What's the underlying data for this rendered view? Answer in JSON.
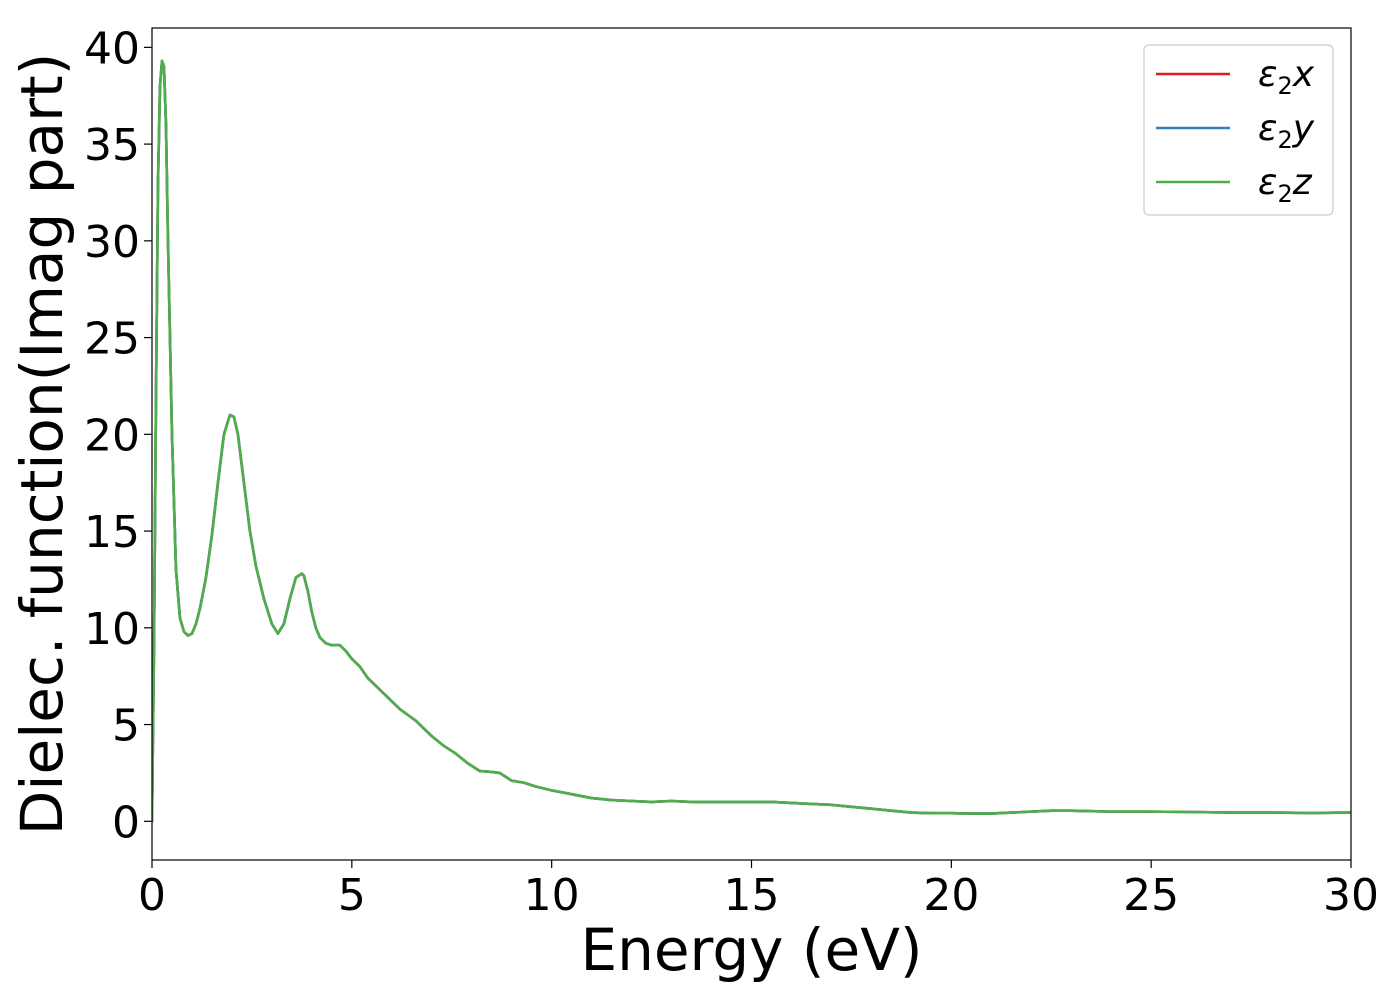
{
  "chart_data": {
    "type": "line",
    "xlabel": "Energy (eV)",
    "ylabel": "Dielec. function(Imag part)",
    "xlim": [
      0,
      30
    ],
    "ylim": [
      -2,
      41
    ],
    "xticks": [
      0,
      5,
      10,
      15,
      20,
      25,
      30
    ],
    "yticks": [
      0,
      5,
      10,
      15,
      20,
      25,
      30,
      35,
      40
    ],
    "grid": false,
    "legend_position": "top-right",
    "series": [
      {
        "name": "ε2x",
        "legend_base": "ε",
        "legend_sub": "2",
        "legend_var": "x",
        "color": "#e41a1c",
        "x": [
          0,
          0.05,
          0.1,
          0.15,
          0.2,
          0.25,
          0.3,
          0.35,
          0.4,
          0.5,
          0.6,
          0.7,
          0.8,
          0.9,
          1.0,
          1.1,
          1.2,
          1.35,
          1.5,
          1.65,
          1.8,
          1.95,
          2.05,
          2.15,
          2.3,
          2.45,
          2.6,
          2.8,
          3.0,
          3.15,
          3.3,
          3.45,
          3.6,
          3.75,
          3.8,
          3.9,
          4.0,
          4.1,
          4.2,
          4.35,
          4.5,
          4.7,
          4.85,
          5.0,
          5.2,
          5.4,
          5.6,
          5.8,
          6.0,
          6.2,
          6.4,
          6.6,
          6.8,
          7.0,
          7.3,
          7.6,
          7.9,
          8.2,
          8.5,
          8.7,
          9.0,
          9.3,
          9.6,
          10.0,
          10.5,
          11.0,
          11.5,
          12.0,
          12.5,
          13.0,
          13.5,
          14.0,
          14.5,
          15.0,
          15.5,
          16.0,
          16.5,
          17.0,
          17.5,
          18.0,
          18.5,
          19.0,
          19.5,
          20.0,
          20.5,
          21.0,
          21.5,
          22.0,
          22.5,
          23.0,
          24.0,
          25.0,
          26.0,
          27.0,
          28.0,
          29.0,
          30.0
        ],
        "y": [
          0,
          9,
          22,
          33,
          38,
          39.3,
          39.0,
          36,
          30,
          20,
          13,
          10.5,
          9.8,
          9.6,
          9.7,
          10.2,
          11.0,
          12.6,
          14.8,
          17.5,
          20.0,
          21.0,
          20.9,
          20.0,
          17.5,
          15.0,
          13.2,
          11.5,
          10.2,
          9.7,
          10.2,
          11.5,
          12.6,
          12.8,
          12.7,
          11.9,
          10.8,
          10.0,
          9.5,
          9.2,
          9.1,
          9.1,
          8.8,
          8.4,
          8.0,
          7.4,
          7.0,
          6.6,
          6.2,
          5.8,
          5.5,
          5.2,
          4.8,
          4.4,
          3.9,
          3.5,
          3.0,
          2.6,
          2.55,
          2.5,
          2.1,
          2.0,
          1.8,
          1.6,
          1.4,
          1.2,
          1.1,
          1.05,
          1.0,
          1.05,
          1.0,
          1.0,
          1.0,
          1.0,
          1.0,
          0.95,
          0.9,
          0.85,
          0.75,
          0.65,
          0.55,
          0.45,
          0.42,
          0.42,
          0.4,
          0.4,
          0.45,
          0.5,
          0.55,
          0.55,
          0.5,
          0.5,
          0.48,
          0.45,
          0.45,
          0.43,
          0.45
        ]
      },
      {
        "name": "ε2y",
        "legend_base": "ε",
        "legend_sub": "2",
        "legend_var": "y",
        "color": "#377eb8",
        "x": [
          0,
          0.05,
          0.1,
          0.15,
          0.2,
          0.25,
          0.3,
          0.35,
          0.4,
          0.5,
          0.6,
          0.7,
          0.8,
          0.9,
          1.0,
          1.1,
          1.2,
          1.35,
          1.5,
          1.65,
          1.8,
          1.95,
          2.05,
          2.15,
          2.3,
          2.45,
          2.6,
          2.8,
          3.0,
          3.15,
          3.3,
          3.45,
          3.6,
          3.75,
          3.8,
          3.9,
          4.0,
          4.1,
          4.2,
          4.35,
          4.5,
          4.7,
          4.85,
          5.0,
          5.2,
          5.4,
          5.6,
          5.8,
          6.0,
          6.2,
          6.4,
          6.6,
          6.8,
          7.0,
          7.3,
          7.6,
          7.9,
          8.2,
          8.5,
          8.7,
          9.0,
          9.3,
          9.6,
          10.0,
          10.5,
          11.0,
          11.5,
          12.0,
          12.5,
          13.0,
          13.5,
          14.0,
          14.5,
          15.0,
          15.5,
          16.0,
          16.5,
          17.0,
          17.5,
          18.0,
          18.5,
          19.0,
          19.5,
          20.0,
          20.5,
          21.0,
          21.5,
          22.0,
          22.5,
          23.0,
          24.0,
          25.0,
          26.0,
          27.0,
          28.0,
          29.0,
          30.0
        ],
        "y": [
          0,
          9,
          22,
          33,
          38,
          39.3,
          39.0,
          36,
          30,
          20,
          13,
          10.5,
          9.8,
          9.6,
          9.7,
          10.2,
          11.0,
          12.6,
          14.8,
          17.5,
          20.0,
          21.0,
          20.9,
          20.0,
          17.5,
          15.0,
          13.2,
          11.5,
          10.2,
          9.7,
          10.2,
          11.5,
          12.6,
          12.8,
          12.7,
          11.9,
          10.8,
          10.0,
          9.5,
          9.2,
          9.1,
          9.1,
          8.8,
          8.4,
          8.0,
          7.4,
          7.0,
          6.6,
          6.2,
          5.8,
          5.5,
          5.2,
          4.8,
          4.4,
          3.9,
          3.5,
          3.0,
          2.6,
          2.55,
          2.5,
          2.1,
          2.0,
          1.8,
          1.6,
          1.4,
          1.2,
          1.1,
          1.05,
          1.0,
          1.05,
          1.0,
          1.0,
          1.0,
          1.0,
          1.0,
          0.95,
          0.9,
          0.85,
          0.75,
          0.65,
          0.55,
          0.45,
          0.42,
          0.42,
          0.4,
          0.4,
          0.45,
          0.5,
          0.55,
          0.55,
          0.5,
          0.5,
          0.48,
          0.45,
          0.45,
          0.43,
          0.45
        ]
      },
      {
        "name": "ε2z",
        "legend_base": "ε",
        "legend_sub": "2",
        "legend_var": "z",
        "color": "#4daf4a",
        "x": [
          0,
          0.05,
          0.1,
          0.15,
          0.2,
          0.25,
          0.3,
          0.35,
          0.4,
          0.5,
          0.6,
          0.7,
          0.8,
          0.9,
          1.0,
          1.1,
          1.2,
          1.35,
          1.5,
          1.65,
          1.8,
          1.95,
          2.05,
          2.15,
          2.3,
          2.45,
          2.6,
          2.8,
          3.0,
          3.15,
          3.3,
          3.45,
          3.6,
          3.75,
          3.8,
          3.9,
          4.0,
          4.1,
          4.2,
          4.35,
          4.5,
          4.7,
          4.85,
          5.0,
          5.2,
          5.4,
          5.6,
          5.8,
          6.0,
          6.2,
          6.4,
          6.6,
          6.8,
          7.0,
          7.3,
          7.6,
          7.9,
          8.2,
          8.5,
          8.7,
          9.0,
          9.3,
          9.6,
          10.0,
          10.5,
          11.0,
          11.5,
          12.0,
          12.5,
          13.0,
          13.5,
          14.0,
          14.5,
          15.0,
          15.5,
          16.0,
          16.5,
          17.0,
          17.5,
          18.0,
          18.5,
          19.0,
          19.5,
          20.0,
          20.5,
          21.0,
          21.5,
          22.0,
          22.5,
          23.0,
          24.0,
          25.0,
          26.0,
          27.0,
          28.0,
          29.0,
          30.0
        ],
        "y": [
          0,
          9,
          22,
          33,
          38,
          39.3,
          39.0,
          36,
          30,
          20,
          13,
          10.5,
          9.8,
          9.6,
          9.7,
          10.2,
          11.0,
          12.6,
          14.8,
          17.5,
          20.0,
          21.0,
          20.9,
          20.0,
          17.5,
          15.0,
          13.2,
          11.5,
          10.2,
          9.7,
          10.2,
          11.5,
          12.6,
          12.8,
          12.7,
          11.9,
          10.8,
          10.0,
          9.5,
          9.2,
          9.1,
          9.1,
          8.8,
          8.4,
          8.0,
          7.4,
          7.0,
          6.6,
          6.2,
          5.8,
          5.5,
          5.2,
          4.8,
          4.4,
          3.9,
          3.5,
          3.0,
          2.6,
          2.55,
          2.5,
          2.1,
          2.0,
          1.8,
          1.6,
          1.4,
          1.2,
          1.1,
          1.05,
          1.0,
          1.05,
          1.0,
          1.0,
          1.0,
          1.0,
          1.0,
          0.95,
          0.9,
          0.85,
          0.75,
          0.65,
          0.55,
          0.45,
          0.42,
          0.42,
          0.4,
          0.4,
          0.45,
          0.5,
          0.55,
          0.55,
          0.5,
          0.5,
          0.48,
          0.45,
          0.45,
          0.43,
          0.45
        ]
      }
    ]
  }
}
